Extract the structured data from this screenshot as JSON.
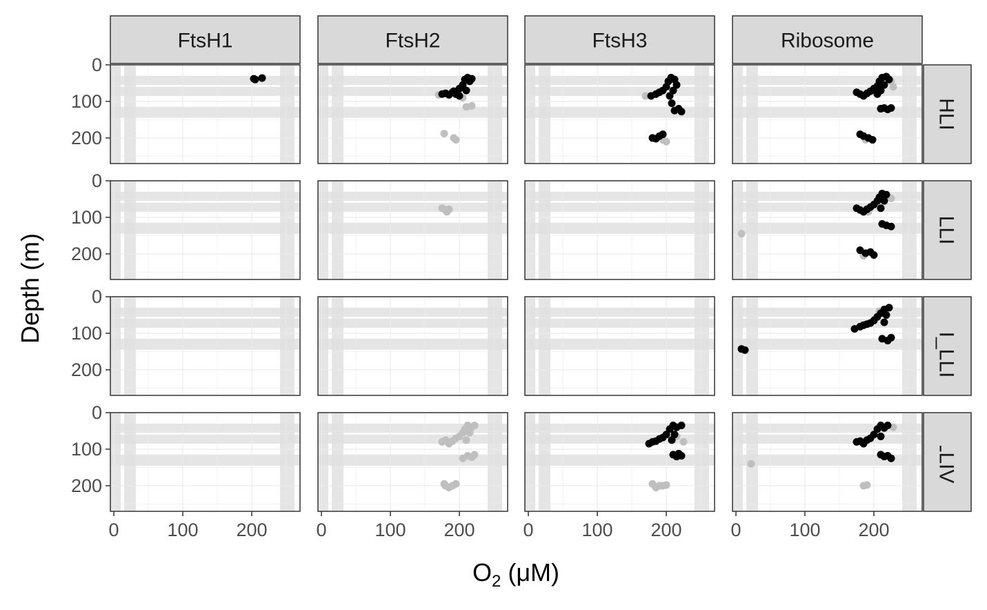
{
  "chart_data": {
    "type": "scatter",
    "layout": "facet_grid",
    "xlabel": {
      "main": "O",
      "sub": "2",
      "units": "(μM)"
    },
    "ylabel": "Depth (m)",
    "xlim": [
      -5,
      270
    ],
    "ylim": [
      0,
      270
    ],
    "y_reversed": true,
    "x_ticks": [
      0,
      100,
      200
    ],
    "y_ticks": [
      0,
      100,
      200
    ],
    "columns": [
      "FtsH1",
      "FtsH2",
      "FtsH3",
      "Ribosome"
    ],
    "rows": [
      "HLI",
      "LLI",
      "LLII_LLIII",
      "LLIV"
    ],
    "colors": {
      "present": "#000000",
      "absent": "#bfbfbf",
      "band": "#e0e0e0",
      "strip": "#d9d9d9"
    },
    "shaded_bands": {
      "x": [
        [
          -5,
          10
        ],
        [
          15,
          32
        ],
        [
          241,
          262
        ]
      ],
      "y": [
        [
          30,
          55
        ],
        [
          60,
          85
        ],
        [
          115,
          145
        ]
      ]
    },
    "panels": [
      {
        "column": "FtsH1",
        "row": "HLI",
        "black": [
          [
            203,
            38
          ],
          [
            205,
            40
          ],
          [
            215,
            36
          ]
        ],
        "grey": []
      },
      {
        "column": "FtsH2",
        "row": "HLI",
        "black": [
          [
            175,
            80
          ],
          [
            180,
            78
          ],
          [
            185,
            82
          ],
          [
            190,
            75
          ],
          [
            195,
            80
          ],
          [
            200,
            65
          ],
          [
            205,
            55
          ],
          [
            208,
            40
          ],
          [
            212,
            35
          ],
          [
            215,
            45
          ],
          [
            218,
            38
          ],
          [
            210,
            70
          ],
          [
            200,
            85
          ],
          [
            192,
            72
          ]
        ],
        "grey": [
          [
            205,
            90
          ],
          [
            210,
            115
          ],
          [
            218,
            112
          ],
          [
            178,
            188
          ],
          [
            192,
            200
          ],
          [
            195,
            205
          ],
          [
            170,
            82
          ]
        ]
      },
      {
        "column": "FtsH3",
        "row": "HLI",
        "black": [
          [
            178,
            85
          ],
          [
            185,
            80
          ],
          [
            190,
            75
          ],
          [
            195,
            70
          ],
          [
            200,
            60
          ],
          [
            203,
            45
          ],
          [
            207,
            35
          ],
          [
            212,
            40
          ],
          [
            215,
            55
          ],
          [
            210,
            70
          ],
          [
            205,
            85
          ],
          [
            208,
            105
          ],
          [
            212,
            125
          ],
          [
            218,
            120
          ],
          [
            222,
            128
          ],
          [
            180,
            200
          ],
          [
            185,
            202
          ],
          [
            190,
            195
          ],
          [
            195,
            190
          ]
        ],
        "grey": [
          [
            170,
            85
          ],
          [
            200,
            210
          ],
          [
            195,
            205
          ]
        ]
      },
      {
        "column": "Ribosome",
        "row": "HLI",
        "black": [
          [
            175,
            75
          ],
          [
            180,
            80
          ],
          [
            185,
            85
          ],
          [
            190,
            78
          ],
          [
            195,
            72
          ],
          [
            200,
            65
          ],
          [
            205,
            58
          ],
          [
            208,
            45
          ],
          [
            212,
            35
          ],
          [
            218,
            32
          ],
          [
            222,
            40
          ],
          [
            215,
            55
          ],
          [
            210,
            70
          ],
          [
            205,
            80
          ],
          [
            210,
            120
          ],
          [
            215,
            118
          ],
          [
            220,
            122
          ],
          [
            225,
            118
          ],
          [
            180,
            190
          ],
          [
            185,
            195
          ],
          [
            192,
            200
          ],
          [
            198,
            205
          ]
        ],
        "grey": [
          [
            188,
            205
          ],
          [
            225,
            45
          ],
          [
            228,
            60
          ]
        ]
      },
      {
        "column": "FtsH1",
        "row": "LLI",
        "black": [],
        "grey": []
      },
      {
        "column": "FtsH2",
        "row": "LLI",
        "black": [],
        "grey": [
          [
            175,
            75
          ],
          [
            180,
            80
          ],
          [
            185,
            78
          ],
          [
            182,
            85
          ]
        ]
      },
      {
        "column": "FtsH3",
        "row": "LLI",
        "black": [],
        "grey": []
      },
      {
        "column": "Ribosome",
        "row": "LLI",
        "black": [
          [
            175,
            75
          ],
          [
            180,
            80
          ],
          [
            185,
            85
          ],
          [
            190,
            78
          ],
          [
            195,
            72
          ],
          [
            200,
            65
          ],
          [
            205,
            55
          ],
          [
            208,
            45
          ],
          [
            212,
            35
          ],
          [
            218,
            38
          ],
          [
            215,
            55
          ],
          [
            210,
            75
          ],
          [
            212,
            118
          ],
          [
            218,
            122
          ],
          [
            225,
            125
          ],
          [
            180,
            190
          ],
          [
            188,
            198
          ],
          [
            195,
            195
          ],
          [
            200,
            203
          ]
        ],
        "grey": [
          [
            8,
            145
          ],
          [
            185,
            205
          ],
          [
            225,
            48
          ],
          [
            192,
            85
          ]
        ]
      },
      {
        "column": "FtsH1",
        "row": "LLII_LLIII",
        "black": [],
        "grey": []
      },
      {
        "column": "FtsH2",
        "row": "LLII_LLIII",
        "black": [],
        "grey": []
      },
      {
        "column": "FtsH3",
        "row": "LLII_LLIII",
        "black": [],
        "grey": []
      },
      {
        "column": "Ribosome",
        "row": "LLII_LLIII",
        "black": [
          [
            8,
            143
          ],
          [
            13,
            146
          ],
          [
            172,
            88
          ],
          [
            180,
            82
          ],
          [
            185,
            78
          ],
          [
            190,
            75
          ],
          [
            195,
            72
          ],
          [
            200,
            65
          ],
          [
            205,
            55
          ],
          [
            210,
            45
          ],
          [
            215,
            35
          ],
          [
            222,
            30
          ],
          [
            218,
            50
          ],
          [
            215,
            70
          ],
          [
            212,
            115
          ],
          [
            220,
            120
          ],
          [
            225,
            112
          ]
        ],
        "grey": [
          [
            208,
            40
          ],
          [
            202,
            60
          ]
        ]
      },
      {
        "column": "FtsH1",
        "row": "LLIV",
        "black": [],
        "grey": []
      },
      {
        "column": "FtsH2",
        "row": "LLIV",
        "black": [],
        "grey": [
          [
            175,
            80
          ],
          [
            180,
            75
          ],
          [
            185,
            85
          ],
          [
            190,
            78
          ],
          [
            195,
            70
          ],
          [
            200,
            65
          ],
          [
            205,
            55
          ],
          [
            208,
            45
          ],
          [
            212,
            35
          ],
          [
            218,
            40
          ],
          [
            222,
            35
          ],
          [
            215,
            55
          ],
          [
            210,
            75
          ],
          [
            212,
            118
          ],
          [
            218,
            122
          ],
          [
            222,
            115
          ],
          [
            205,
            125
          ],
          [
            178,
            195
          ],
          [
            185,
            205
          ],
          [
            190,
            200
          ],
          [
            195,
            195
          ],
          [
            180,
            200
          ]
        ]
      },
      {
        "column": "FtsH3",
        "row": "LLIV",
        "black": [
          [
            175,
            85
          ],
          [
            180,
            80
          ],
          [
            185,
            78
          ],
          [
            190,
            72
          ],
          [
            195,
            68
          ],
          [
            200,
            60
          ],
          [
            205,
            45
          ],
          [
            210,
            35
          ],
          [
            215,
            40
          ],
          [
            222,
            35
          ],
          [
            212,
            60
          ],
          [
            208,
            75
          ],
          [
            210,
            115
          ],
          [
            215,
            120
          ],
          [
            222,
            118
          ],
          [
            218,
            112
          ]
        ],
        "grey": [
          [
            180,
            195
          ],
          [
            185,
            205
          ],
          [
            190,
            200
          ],
          [
            195,
            200
          ],
          [
            200,
            198
          ],
          [
            215,
            65
          ],
          [
            225,
            80
          ]
        ]
      },
      {
        "column": "Ribosome",
        "row": "LLIV",
        "black": [
          [
            175,
            80
          ],
          [
            180,
            78
          ],
          [
            185,
            85
          ],
          [
            190,
            75
          ],
          [
            195,
            70
          ],
          [
            200,
            60
          ],
          [
            205,
            45
          ],
          [
            210,
            35
          ],
          [
            215,
            42
          ],
          [
            220,
            35
          ],
          [
            210,
            65
          ],
          [
            210,
            115
          ],
          [
            215,
            120
          ],
          [
            220,
            118
          ],
          [
            225,
            125
          ]
        ],
        "grey": [
          [
            22,
            140
          ],
          [
            185,
            200
          ],
          [
            190,
            198
          ],
          [
            228,
            40
          ]
        ]
      }
    ]
  }
}
